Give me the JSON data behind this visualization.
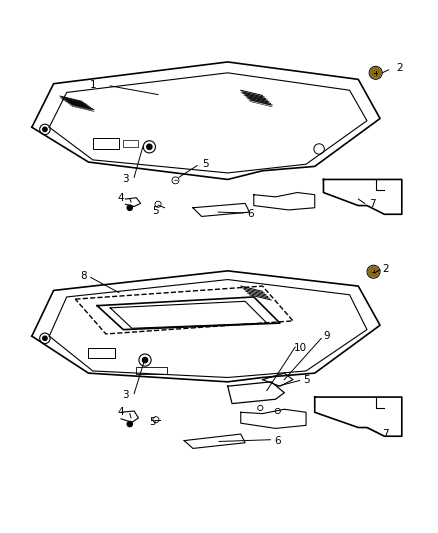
{
  "title": "",
  "background_color": "#ffffff",
  "line_color": "#000000",
  "label_color": "#000000",
  "figsize": [
    4.38,
    5.33
  ],
  "dpi": 100
}
